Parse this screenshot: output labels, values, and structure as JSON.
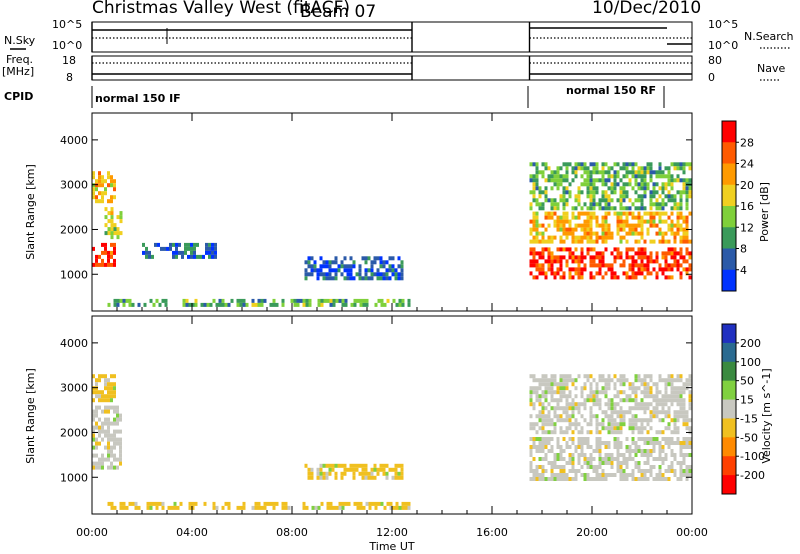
{
  "header": {
    "station": "Christmas Valley West (fitACF)",
    "beam": "Beam 07",
    "date": "10/Dec/2010"
  },
  "left_labels": {
    "nsky": "N.Sky",
    "freq": "Freq.",
    "freq_unit": "[MHz]",
    "cpid": "CPID"
  },
  "right_labels": {
    "nsearch": "N.Search",
    "nave": "Nave"
  },
  "noise_axis": {
    "top": "10^5",
    "bottom": "10^0"
  },
  "freq_axis": {
    "top": "18",
    "bottom": "8"
  },
  "nave_axis": {
    "top": "80",
    "bottom": "0"
  },
  "cpid_labels": [
    "normal 150 IF",
    "normal 150 RF"
  ],
  "x_axis": {
    "label": "Time UT",
    "ticks": [
      "00:00",
      "04:00",
      "08:00",
      "12:00",
      "16:00",
      "20:00",
      "00:00"
    ]
  },
  "colors": {
    "power_scale": [
      "#0033ff",
      "#2b5aa8",
      "#3a9a5a",
      "#7fd03a",
      "#f0d020",
      "#ff9a00",
      "#ff5a00",
      "#ff0000"
    ],
    "velocity_scale": [
      "#2030c0",
      "#2a6a90",
      "#3a8a40",
      "#80d040",
      "#c8c8c0",
      "#f0c020",
      "#ff8a00",
      "#ff4000",
      "#ff0000"
    ]
  },
  "chart_data": [
    {
      "type": "heatmap",
      "title": "",
      "xlabel": "",
      "ylabel": "Slant Range [km]",
      "xlim_hours": [
        0,
        24
      ],
      "ylim": [
        180,
        4600
      ],
      "yticks": [
        1000,
        2000,
        3000,
        4000
      ],
      "colorbar": {
        "label": "Power [dB]",
        "ticks": [
          4,
          8,
          12,
          16,
          20,
          24,
          28
        ],
        "range": [
          0,
          32
        ]
      },
      "data_gaps_hours": [
        [
          12.8,
          17.5
        ]
      ],
      "regions": [
        {
          "t_start": 0.0,
          "t_end": 1.0,
          "r_start": 1100,
          "r_end": 1700,
          "value": 28
        },
        {
          "t_start": 0.5,
          "t_end": 1.3,
          "r_start": 1700,
          "r_end": 2500,
          "value": 16
        },
        {
          "t_start": 0.0,
          "t_end": 1.0,
          "r_start": 2500,
          "r_end": 3300,
          "value": 20
        },
        {
          "t_start": 0.5,
          "t_end": 12.8,
          "r_start": 200,
          "r_end": 450,
          "value": 12
        },
        {
          "t_start": 2.0,
          "t_end": 5.0,
          "r_start": 1300,
          "r_end": 1700,
          "value": 6
        },
        {
          "t_start": 8.5,
          "t_end": 12.5,
          "r_start": 800,
          "r_end": 1400,
          "value": 6
        },
        {
          "t_start": 17.5,
          "t_end": 24.0,
          "r_start": 800,
          "r_end": 1600,
          "value": 28
        },
        {
          "t_start": 17.5,
          "t_end": 24.0,
          "r_start": 1600,
          "r_end": 2400,
          "value": 20
        },
        {
          "t_start": 17.5,
          "t_end": 24.0,
          "r_start": 2400,
          "r_end": 3500,
          "value": 12
        }
      ]
    },
    {
      "type": "heatmap",
      "title": "",
      "xlabel": "Time UT",
      "ylabel": "Slant Range [km]",
      "xlim_hours": [
        0,
        24
      ],
      "ylim": [
        180,
        4600
      ],
      "yticks": [
        1000,
        2000,
        3000,
        4000
      ],
      "colorbar": {
        "label": "Velocity [m s^-1]",
        "ticks": [
          200,
          100,
          50,
          15,
          -15,
          -50,
          -100,
          -200
        ],
        "range": [
          -250,
          250
        ]
      },
      "data_gaps_hours": [
        [
          12.8,
          17.5
        ]
      ],
      "regions": [
        {
          "t_start": 0.0,
          "t_end": 1.2,
          "r_start": 1100,
          "r_end": 2600,
          "value": 0
        },
        {
          "t_start": 0.0,
          "t_end": 1.0,
          "r_start": 2600,
          "r_end": 3300,
          "value": -40
        },
        {
          "t_start": 0.5,
          "t_end": 12.8,
          "r_start": 200,
          "r_end": 450,
          "value": -40
        },
        {
          "t_start": 8.5,
          "t_end": 12.5,
          "r_start": 900,
          "r_end": 1300,
          "value": -40
        },
        {
          "t_start": 17.5,
          "t_end": 24.0,
          "r_start": 900,
          "r_end": 1900,
          "value": 0
        },
        {
          "t_start": 17.5,
          "t_end": 24.0,
          "r_start": 1900,
          "r_end": 3300,
          "value": 0
        }
      ]
    }
  ]
}
